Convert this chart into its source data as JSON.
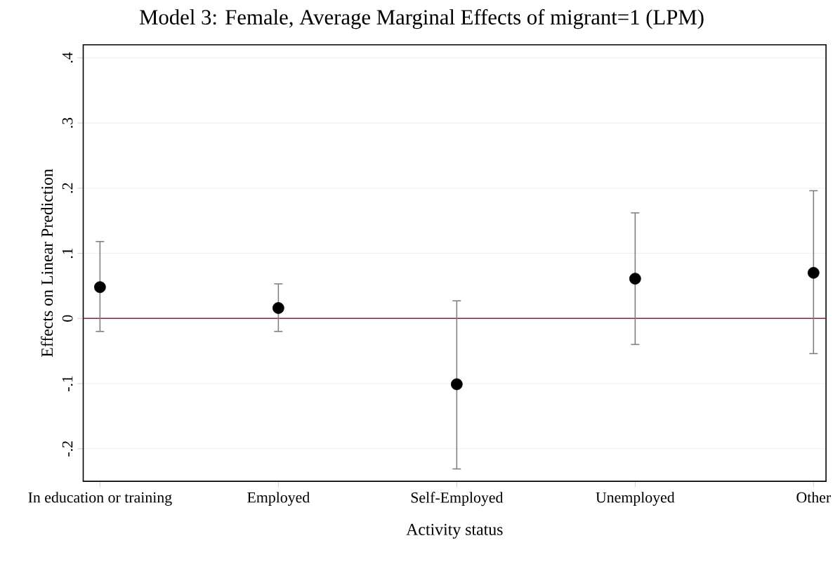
{
  "chart_data": {
    "type": "scatter",
    "title": "Model 3: Female, Average Marginal Effects of migrant=1 (LPM)",
    "xlabel": "Activity status",
    "ylabel": "Effects on Linear Prediction",
    "categories": [
      "In education or training",
      "Employed",
      "Self-Employed",
      "Unemployed",
      "Other"
    ],
    "values": [
      0.048,
      0.016,
      -0.101,
      0.061,
      0.07
    ],
    "errors": [
      [
        -0.02,
        0.118
      ],
      [
        -0.02,
        0.053
      ],
      [
        -0.231,
        0.027
      ],
      [
        -0.04,
        0.162
      ],
      [
        -0.054,
        0.196
      ]
    ],
    "color": "#000000",
    "marker": "circle",
    "grid": "y",
    "ylim": [
      -0.25,
      0.42
    ],
    "yticks": [
      {
        "value": -0.2,
        "label": "-.2"
      },
      {
        "value": -0.1,
        "label": "-.1"
      },
      0,
      {
        "value": 0.1,
        "label": ".1"
      },
      {
        "value": 0.2,
        "label": ".2"
      },
      {
        "value": 0.3,
        "label": ".3"
      },
      {
        "value": 0.4,
        "label": ".4"
      }
    ],
    "ref_lines": [
      {
        "axis": "y",
        "value": 0,
        "color": "#b0103a"
      }
    ]
  }
}
